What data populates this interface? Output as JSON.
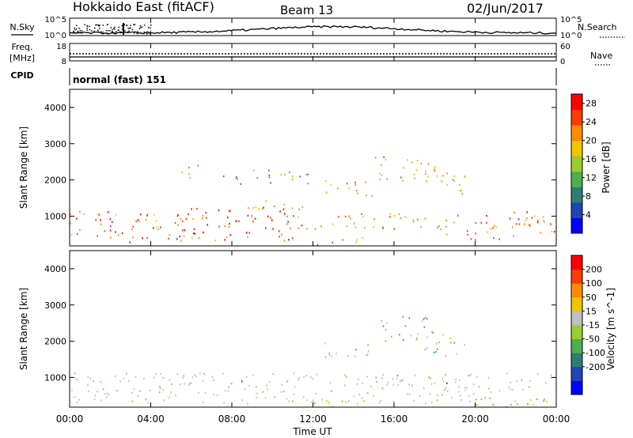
{
  "header": {
    "title": "Hokkaido East (fitACF)",
    "beam": "Beam 13",
    "date": "02/Jun/2017"
  },
  "nsky_panel": {
    "left_label": "N.Sky",
    "right_label": "N.Search",
    "left_ticks": [
      "10^5",
      "10^0"
    ],
    "right_ticks": [
      "10^5",
      "10^0"
    ]
  },
  "freq_panel": {
    "left_label_line1": "Freq.",
    "left_label_line2": "[MHz]",
    "right_label": "Nave",
    "left_ticks": [
      "18",
      "8"
    ],
    "right_ticks": [
      "60",
      "0"
    ]
  },
  "cpid_panel": {
    "label": "CPID",
    "value": "normal (fast) 151"
  },
  "x_axis": {
    "label": "Time UT",
    "ticks": [
      "00:00",
      "04:00",
      "08:00",
      "12:00",
      "16:00",
      "20:00",
      "00:00"
    ]
  },
  "chart_data": [
    {
      "type": "heatmap",
      "x": "Time UT (hours)",
      "xlim": [
        0,
        24
      ],
      "ylabel": "Slant Range [km]",
      "ylim": [
        180,
        4500
      ],
      "yticks": [
        1000,
        2000,
        3000,
        4000
      ],
      "colorbar": {
        "label": "Power [dB]",
        "ticks": [
          4,
          8,
          12,
          16,
          20,
          24,
          28
        ],
        "range": [
          0,
          30
        ],
        "colors": [
          "#0000ff",
          "#1e46b4",
          "#2e7d73",
          "#4caf50",
          "#9acd32",
          "#f5c400",
          "#ff8c00",
          "#ff3c00",
          "#ff0000"
        ]
      },
      "echo_regions": [
        {
          "t0": 0.0,
          "t1": 6.0,
          "r0": 300,
          "r1": 1150,
          "level": 0.85
        },
        {
          "t0": 5.4,
          "t1": 11.0,
          "r0": 350,
          "r1": 1300,
          "level": 0.9
        },
        {
          "t0": 11.0,
          "t1": 16.5,
          "r0": 650,
          "r1": 1100,
          "level": 0.75
        },
        {
          "t0": 16.5,
          "t1": 19.0,
          "r0": 500,
          "r1": 1000,
          "level": 0.6
        },
        {
          "t0": 19.0,
          "t1": 24.0,
          "r0": 350,
          "r1": 1150,
          "level": 0.85
        },
        {
          "t0": 12.5,
          "t1": 15.0,
          "r0": 1550,
          "r1": 2000,
          "level": 0.65
        },
        {
          "t0": 15.0,
          "t1": 18.0,
          "r0": 2000,
          "r1": 2700,
          "level": 0.7
        },
        {
          "t0": 17.5,
          "t1": 19.5,
          "r0": 1600,
          "r1": 2300,
          "level": 0.6
        },
        {
          "t0": 5.5,
          "t1": 6.5,
          "r0": 2050,
          "r1": 2500,
          "level": 0.6
        },
        {
          "t0": 9.0,
          "t1": 12.5,
          "r0": 1200,
          "r1": 1450,
          "level": 0.5
        },
        {
          "t0": 7.5,
          "t1": 12.0,
          "r0": 1900,
          "r1": 2300,
          "level": 0.45
        },
        {
          "t0": 12.0,
          "t1": 14.5,
          "r0": 200,
          "r1": 450,
          "level": 0.5
        }
      ]
    },
    {
      "type": "heatmap",
      "x": "Time UT (hours)",
      "xlim": [
        0,
        24
      ],
      "ylabel": "Slant Range [km]",
      "ylim": [
        180,
        4500
      ],
      "yticks": [
        1000,
        2000,
        3000,
        4000
      ],
      "colorbar": {
        "label": "Velocity [m s^-1]",
        "ticks": [
          200,
          100,
          50,
          15,
          -15,
          -50,
          -100,
          -200
        ],
        "range": [
          -250,
          250
        ],
        "colors": [
          "#0000ff",
          "#1e46b4",
          "#2e7d73",
          "#4caf50",
          "#9acd32",
          "#c0c0c0",
          "#f5c400",
          "#ff8c00",
          "#ff3c00",
          "#ff0000"
        ]
      },
      "echo_regions": [
        {
          "t0": 0.0,
          "t1": 24.0,
          "r0": 300,
          "r1": 1150,
          "level": 0.0
        },
        {
          "t0": 12.5,
          "t1": 15.0,
          "r0": 1550,
          "r1": 2000,
          "level": 0.1
        },
        {
          "t0": 15.0,
          "t1": 18.0,
          "r0": 2000,
          "r1": 2700,
          "level": 0.25
        },
        {
          "t0": 17.5,
          "t1": 19.5,
          "r0": 1600,
          "r1": 2300,
          "level": 0.2
        },
        {
          "t0": 12.0,
          "t1": 14.5,
          "r0": 200,
          "r1": 450,
          "level": -0.4
        },
        {
          "t0": 19.0,
          "t1": 24.0,
          "r0": 200,
          "r1": 450,
          "level": -0.5
        }
      ]
    }
  ]
}
